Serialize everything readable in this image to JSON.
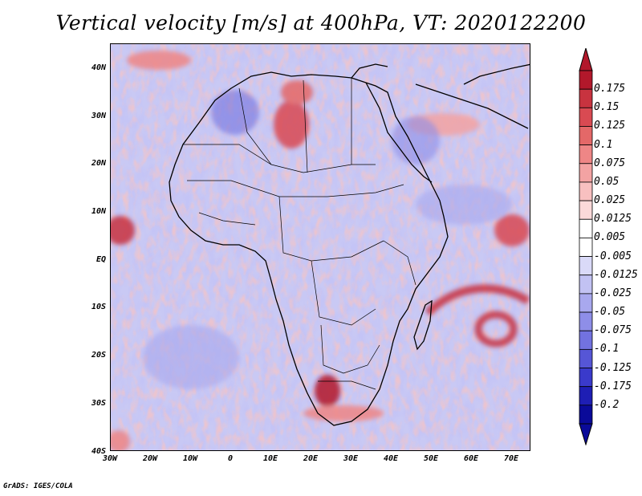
{
  "title": "Vertical velocity [m/s] at 400hPa, VT: 2020122200",
  "credit": "GrADS: IGES/COLA",
  "lat_ticks": [
    "40N",
    "30N",
    "20N",
    "10N",
    "EQ",
    "10S",
    "20S",
    "30S",
    "40S"
  ],
  "lon_ticks": [
    "30W",
    "20W",
    "10W",
    "0",
    "10E",
    "20E",
    "30E",
    "40E",
    "50E",
    "60E",
    "70E"
  ],
  "colorbar": {
    "labels": [
      "0.175",
      "0.15",
      "0.125",
      "0.1",
      "0.075",
      "0.05",
      "0.025",
      "0.0125",
      "0.005",
      "-0.005",
      "-0.0125",
      "-0.025",
      "-0.05",
      "-0.075",
      "-0.1",
      "-0.125",
      "-0.175",
      "-0.2"
    ],
    "colors": [
      "#b2182b",
      "#c8333f",
      "#d94a52",
      "#e46868",
      "#ee8686",
      "#f3a3a3",
      "#f8c0c0",
      "#fbd9d9",
      "#ffffff",
      "#ffffff",
      "#dadaf8",
      "#c2c2f3",
      "#a8a8ee",
      "#8e8ee8",
      "#7272e0",
      "#5656d6",
      "#3a3acb",
      "#1e1eb4",
      "#0a0a99"
    ]
  },
  "map": {
    "region": "Africa",
    "lon_range": [
      -30,
      75
    ],
    "lat_range": [
      -40,
      45
    ],
    "variable": "Vertical velocity",
    "units": "m/s",
    "level_hpa": 400
  }
}
